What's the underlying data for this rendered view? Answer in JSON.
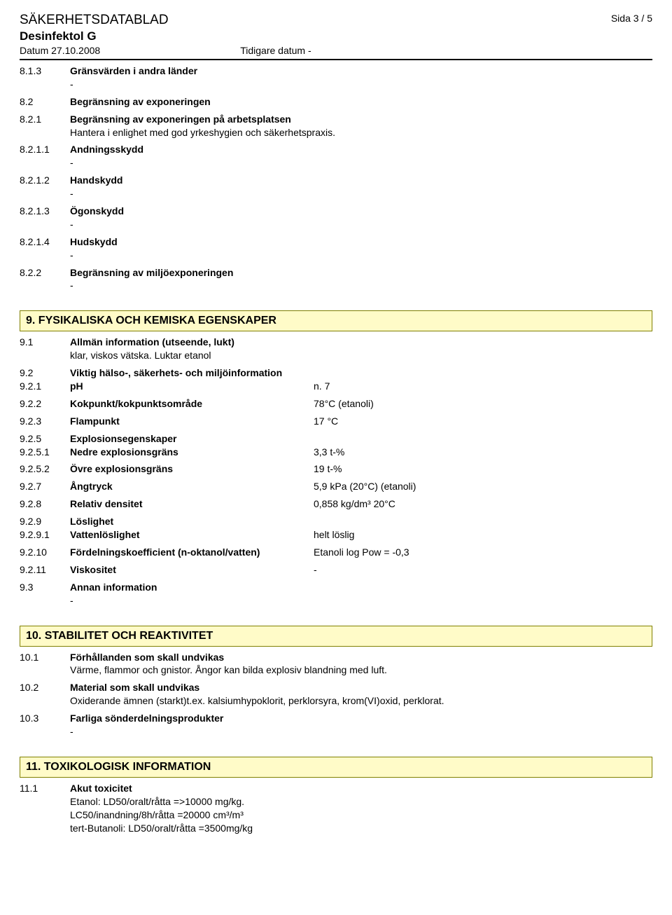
{
  "header": {
    "title": "SÄKERHETSDATABLAD",
    "product": "Desinfektol G",
    "date": "Datum 27.10.2008",
    "prev": "Tidigare datum -",
    "page": "Sida  3 / 5"
  },
  "sections": {
    "s8_1_3": {
      "num": "8.1.3",
      "label": "Gränsvärden i andra länder",
      "dash": "-"
    },
    "s8_2": {
      "num": "8.2",
      "label": "Begränsning av exponeringen"
    },
    "s8_2_1": {
      "num": "8.2.1",
      "label": "Begränsning av exponeringen på arbetsplatsen",
      "body": "Hantera i enlighet med god yrkeshygien och säkerhetspraxis."
    },
    "s8_2_1_1": {
      "num": "8.2.1.1",
      "label": "Andningsskydd",
      "dash": "-"
    },
    "s8_2_1_2": {
      "num": "8.2.1.2",
      "label": "Handskydd",
      "dash": "-"
    },
    "s8_2_1_3": {
      "num": "8.2.1.3",
      "label": "Ögonskydd",
      "dash": "-"
    },
    "s8_2_1_4": {
      "num": "8.2.1.4",
      "label": "Hudskydd",
      "dash": "-"
    },
    "s8_2_2": {
      "num": "8.2.2",
      "label": "Begränsning av miljöexponeringen",
      "dash": "-"
    },
    "sec9": {
      "title": "9. FYSIKALISKA OCH KEMISKA EGENSKAPER"
    },
    "s9_1": {
      "num": "9.1",
      "label": "Allmän information (utseende, lukt)",
      "body": "klar, viskos vätska. Luktar etanol"
    },
    "s9_2": {
      "num": "9.2",
      "label": "Viktig hälso-, säkerhets- och miljöinformation"
    },
    "s9_2_1": {
      "num": "9.2.1",
      "label": "pH",
      "val": "n. 7"
    },
    "s9_2_2": {
      "num": "9.2.2",
      "label": "Kokpunkt/kokpunktsområde",
      "val": "78°C (etanoli)"
    },
    "s9_2_3": {
      "num": "9.2.3",
      "label": "Flampunkt",
      "val": "17 °C"
    },
    "s9_2_5": {
      "num": "9.2.5",
      "label": "Explosionsegenskaper"
    },
    "s9_2_5_1": {
      "num": "9.2.5.1",
      "label": "Nedre explosionsgräns",
      "val": "3,3 t-%"
    },
    "s9_2_5_2": {
      "num": "9.2.5.2",
      "label": "Övre explosionsgräns",
      "val": "19 t-%"
    },
    "s9_2_7": {
      "num": "9.2.7",
      "label": "Ångtryck",
      "val": "5,9 kPa (20°C) (etanoli)"
    },
    "s9_2_8": {
      "num": "9.2.8",
      "label": "Relativ densitet",
      "val": "0,858 kg/dm³ 20°C"
    },
    "s9_2_9": {
      "num": "9.2.9",
      "label": "Löslighet"
    },
    "s9_2_9_1": {
      "num": "9.2.9.1",
      "label": "Vattenlöslighet",
      "val": "helt löslig"
    },
    "s9_2_10": {
      "num": "9.2.10",
      "label": "Fördelningskoefficient (n-oktanol/vatten)",
      "val": "Etanoli log Pow = -0,3"
    },
    "s9_2_11": {
      "num": "9.2.11",
      "label": "Viskositet",
      "val": "-"
    },
    "s9_3": {
      "num": "9.3",
      "label": "Annan information",
      "dash": "-"
    },
    "sec10": {
      "title": "10. STABILITET OCH REAKTIVITET"
    },
    "s10_1": {
      "num": "10.1",
      "label": "Förhållanden som skall undvikas",
      "body": "Värme, flammor och gnistor. Ångor kan bilda explosiv blandning med luft."
    },
    "s10_2": {
      "num": "10.2",
      "label": "Material som skall undvikas",
      "body": "Oxiderande ämnen (starkt)t.ex. kalsiumhypoklorit, perklorsyra, krom(VI)oxid, perklorat."
    },
    "s10_3": {
      "num": "10.3",
      "label": "Farliga sönderdelningsprodukter",
      "dash": "-"
    },
    "sec11": {
      "title": "11. TOXIKOLOGISK INFORMATION"
    },
    "s11_1": {
      "num": "11.1",
      "label": "Akut toxicitet",
      "body1": "Etanol: LD50/oralt/råtta =>10000 mg/kg.",
      "body2": "LC50/inandning/8h/råtta =20000 cm³/m³",
      "body3": "tert-Butanoli: LD50/oralt/råtta =3500mg/kg"
    }
  }
}
